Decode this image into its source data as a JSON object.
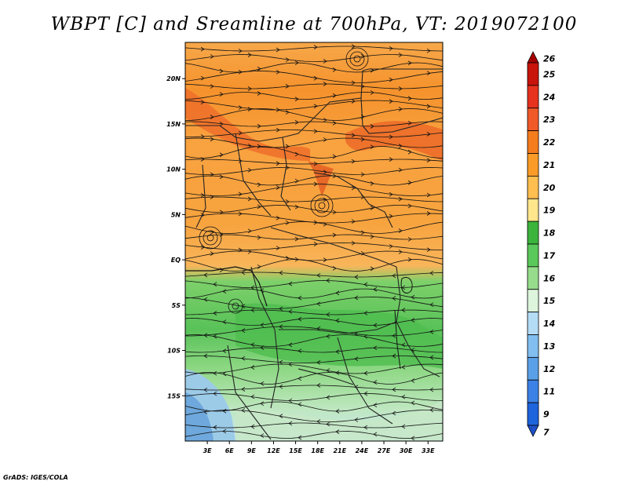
{
  "title": "WBPT [C] and Sreamline at 700hPa, VT: 2019072100",
  "credit": "GrADS: IGES/COLA",
  "map": {
    "variable": "Wet-bulb potential temperature",
    "units": "C",
    "level": "700hPa",
    "valid_time": "2019072100",
    "lon_range": [
      0,
      35
    ],
    "lat_range": [
      -20,
      24
    ],
    "lat_ticks": [
      {
        "value": 20,
        "label": "20N"
      },
      {
        "value": 15,
        "label": "15N"
      },
      {
        "value": 10,
        "label": "10N"
      },
      {
        "value": 5,
        "label": "5N"
      },
      {
        "value": 0,
        "label": "EQ"
      },
      {
        "value": -5,
        "label": "5S"
      },
      {
        "value": -10,
        "label": "10S"
      },
      {
        "value": -15,
        "label": "15S"
      }
    ],
    "lon_ticks": [
      {
        "value": 3,
        "label": "3E"
      },
      {
        "value": 6,
        "label": "6E"
      },
      {
        "value": 9,
        "label": "9E"
      },
      {
        "value": 12,
        "label": "12E"
      },
      {
        "value": 15,
        "label": "15E"
      },
      {
        "value": 18,
        "label": "18E"
      },
      {
        "value": 21,
        "label": "21E"
      },
      {
        "value": 24,
        "label": "24E"
      },
      {
        "value": 27,
        "label": "27E"
      },
      {
        "value": 30,
        "label": "30E"
      },
      {
        "value": 33,
        "label": "33E"
      }
    ]
  },
  "colorbar": {
    "levels": [
      {
        "label": "26",
        "color": "#a50000"
      },
      {
        "label": "25",
        "color": "#c8140a"
      },
      {
        "label": "24",
        "color": "#e6321e"
      },
      {
        "label": "23",
        "color": "#f05a28"
      },
      {
        "label": "22",
        "color": "#f57d1e"
      },
      {
        "label": "21",
        "color": "#fa9b28"
      },
      {
        "label": "20",
        "color": "#ffbe50"
      },
      {
        "label": "19",
        "color": "#ffe68c"
      },
      {
        "label": "18",
        "color": "#3cb43c"
      },
      {
        "label": "17",
        "color": "#5ac85a"
      },
      {
        "label": "16",
        "color": "#96dc8c"
      },
      {
        "label": "15",
        "color": "#dcf5dc"
      },
      {
        "label": "14",
        "color": "#b4dcf5"
      },
      {
        "label": "13",
        "color": "#82bef0"
      },
      {
        "label": "12",
        "color": "#5aa0e6"
      },
      {
        "label": "11",
        "color": "#3c82e6"
      },
      {
        "label": "9",
        "color": "#1e64dc"
      },
      {
        "label": "7",
        "color": "#1e50c8"
      }
    ]
  }
}
